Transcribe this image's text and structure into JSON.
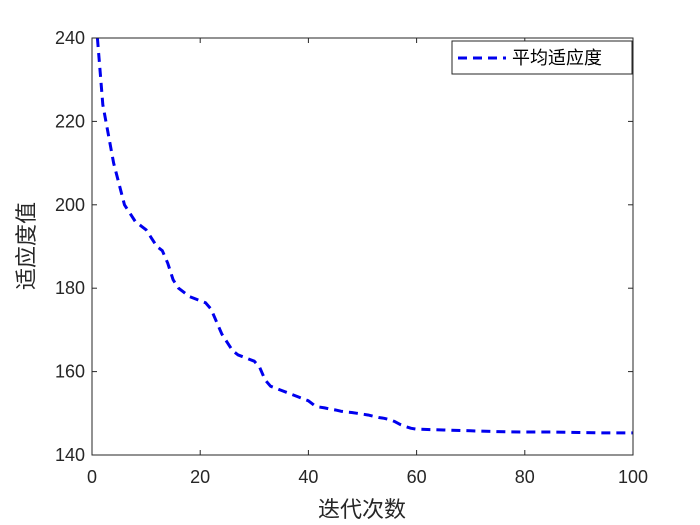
{
  "chart_data": {
    "type": "line",
    "title": "",
    "xlabel": "迭代次数",
    "ylabel": "适应度值",
    "xlim": [
      0,
      100
    ],
    "ylim": [
      140,
      240
    ],
    "xticks": [
      0,
      20,
      40,
      60,
      80,
      100
    ],
    "yticks": [
      140,
      160,
      180,
      200,
      220,
      240
    ],
    "grid": false,
    "legend_position": "top-right",
    "series": [
      {
        "name": "平均适应度",
        "color": "#0000ee",
        "line_style": "dashed",
        "x": [
          1,
          2,
          3,
          4,
          5,
          6,
          7,
          8,
          9,
          10,
          11,
          12,
          13,
          14,
          15,
          16,
          17,
          18,
          19,
          20,
          21,
          22,
          23,
          24,
          25,
          26,
          27,
          28,
          29,
          30,
          31,
          32,
          33,
          34,
          35,
          36,
          37,
          38,
          39,
          40,
          41,
          42,
          43,
          44,
          45,
          46,
          47,
          48,
          49,
          50,
          51,
          52,
          53,
          54,
          55,
          56,
          57,
          58,
          59,
          60,
          65,
          70,
          75,
          80,
          85,
          90,
          95,
          100
        ],
        "y": [
          240,
          224,
          217,
          210,
          205,
          200,
          198,
          196,
          195,
          194,
          192,
          190,
          189,
          186,
          182,
          180,
          179,
          178,
          177.5,
          177,
          176.5,
          175,
          172,
          169,
          167,
          165,
          164,
          163.5,
          163,
          162.5,
          161,
          158,
          156.5,
          156,
          155.5,
          155,
          154.5,
          154,
          153.5,
          153,
          152,
          151.5,
          151.3,
          151,
          150.8,
          150.5,
          150.3,
          150.2,
          150,
          149.8,
          149.6,
          149.3,
          149,
          148.8,
          148.5,
          148,
          147.3,
          146.8,
          146.4,
          146.2,
          146,
          145.8,
          145.6,
          145.5,
          145.5,
          145.4,
          145.3,
          145.3
        ]
      }
    ]
  }
}
